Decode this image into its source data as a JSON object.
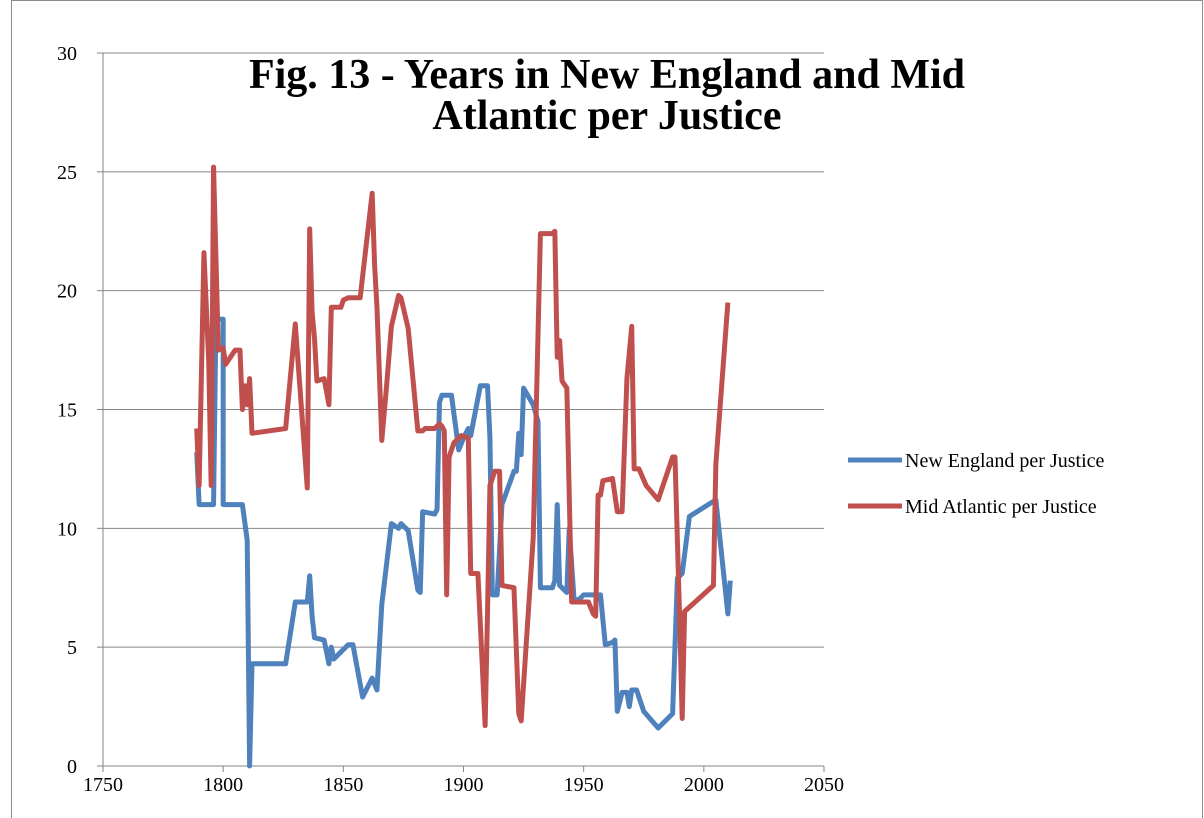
{
  "chart_data": {
    "type": "line",
    "title": [
      "Fig. 13 - Years in New England and Mid",
      "Atlantic per Justice"
    ],
    "xlim": [
      1750,
      2050
    ],
    "xticks": [
      1750,
      1800,
      1850,
      1900,
      1950,
      2000,
      2050
    ],
    "ylim": [
      0,
      30
    ],
    "yticks": [
      0,
      5,
      10,
      15,
      20,
      25,
      30
    ],
    "grid": true,
    "legend": "right",
    "series": [
      {
        "name": "New England per Justice",
        "color": "#4f81bd",
        "x": [
          1789,
          1790,
          1796,
          1797,
          1800,
          1800,
          1808,
          1810,
          1811,
          1812,
          1826,
          1830,
          1835,
          1836,
          1837,
          1838,
          1842,
          1844,
          1845,
          1846,
          1852,
          1854,
          1858,
          1862,
          1864,
          1866,
          1870,
          1873,
          1874,
          1877,
          1881,
          1882,
          1883,
          1888,
          1889,
          1890,
          1891,
          1895,
          1898,
          1900,
          1902,
          1903,
          1907,
          1910,
          1911,
          1912,
          1914,
          1916,
          1921,
          1922,
          1923,
          1924,
          1925,
          1929,
          1931,
          1932,
          1937,
          1938,
          1939,
          1940,
          1943,
          1944,
          1946,
          1948,
          1950,
          1955,
          1957,
          1959,
          1962,
          1963,
          1964,
          1966,
          1968,
          1969,
          1970,
          1972,
          1975,
          1981,
          1987,
          1989,
          1991,
          1994,
          2005,
          2010,
          2011
        ],
        "values": [
          13.2,
          11,
          11,
          18.8,
          18.8,
          11,
          11,
          9.5,
          0,
          4.3,
          4.3,
          6.9,
          6.9,
          8,
          6.3,
          5.4,
          5.3,
          4.3,
          5,
          4.5,
          5.1,
          5.1,
          2.9,
          3.7,
          3.2,
          6.8,
          10.2,
          10,
          10.2,
          9.9,
          7.4,
          7.3,
          10.7,
          10.6,
          10.8,
          15.3,
          15.6,
          15.6,
          13.3,
          13.8,
          14.2,
          13.9,
          16,
          16,
          13.8,
          7.2,
          7.2,
          11,
          12.4,
          12.4,
          14,
          13.1,
          15.9,
          15.2,
          14.5,
          7.5,
          7.5,
          7.8,
          11,
          7.6,
          7.3,
          10,
          7,
          7,
          7.2,
          7.2,
          7.2,
          5.1,
          5.2,
          5.3,
          2.3,
          3.1,
          3.1,
          2.5,
          3.2,
          3.2,
          2.3,
          1.6,
          2.2,
          7.9,
          8.1,
          10.5,
          11.2,
          6.4,
          7.8
        ]
      },
      {
        "name": "Mid Atlantic per Justice",
        "color": "#c0504d",
        "x": [
          1789,
          1790,
          1792,
          1794,
          1795,
          1796,
          1798,
          1800,
          1801,
          1805,
          1807,
          1808,
          1809,
          1810,
          1811,
          1812,
          1826,
          1830,
          1835,
          1836,
          1837,
          1838,
          1839,
          1842,
          1844,
          1845,
          1849,
          1850,
          1852,
          1857,
          1862,
          1863,
          1864,
          1866,
          1868,
          1870,
          1873,
          1874,
          1877,
          1881,
          1883,
          1884,
          1888,
          1890,
          1891,
          1892,
          1893,
          1894,
          1896,
          1899,
          1902,
          1903,
          1906,
          1909,
          1910,
          1911,
          1913,
          1915,
          1916,
          1921,
          1923,
          1924,
          1929,
          1932,
          1937,
          1938,
          1939,
          1940,
          1941,
          1943,
          1945,
          1952,
          1954,
          1955,
          1956,
          1957,
          1958,
          1962,
          1964,
          1966,
          1968,
          1970,
          1971,
          1973,
          1976,
          1981,
          1987,
          1988,
          1990,
          1991,
          1992,
          2004,
          2005,
          2010
        ],
        "values": [
          14.2,
          11.8,
          21.6,
          17,
          11.8,
          25.2,
          17.5,
          17.6,
          16.9,
          17.5,
          17.5,
          15,
          16,
          15.2,
          16.3,
          14,
          14.2,
          18.6,
          11.7,
          22.6,
          19.1,
          18,
          16.2,
          16.3,
          15.2,
          19.3,
          19.3,
          19.6,
          19.7,
          19.7,
          24.1,
          21.1,
          19.3,
          13.7,
          16,
          18.5,
          19.8,
          19.7,
          18.4,
          14.1,
          14.1,
          14.2,
          14.2,
          14.4,
          14.3,
          14.1,
          7.2,
          13,
          13.6,
          13.9,
          13.8,
          8.1,
          8.1,
          1.7,
          6.5,
          11.8,
          12.4,
          12.4,
          7.6,
          7.5,
          2.2,
          1.9,
          9.6,
          22.4,
          22.4,
          22.5,
          17.2,
          17.9,
          16.2,
          15.9,
          6.9,
          6.9,
          6.4,
          6.3,
          11.4,
          11.4,
          12,
          12.1,
          10.7,
          10.7,
          16.3,
          18.5,
          12.5,
          12.5,
          11.8,
          11.2,
          13,
          13,
          6,
          2,
          6.5,
          7.6,
          12.7,
          19.5
        ]
      }
    ]
  }
}
